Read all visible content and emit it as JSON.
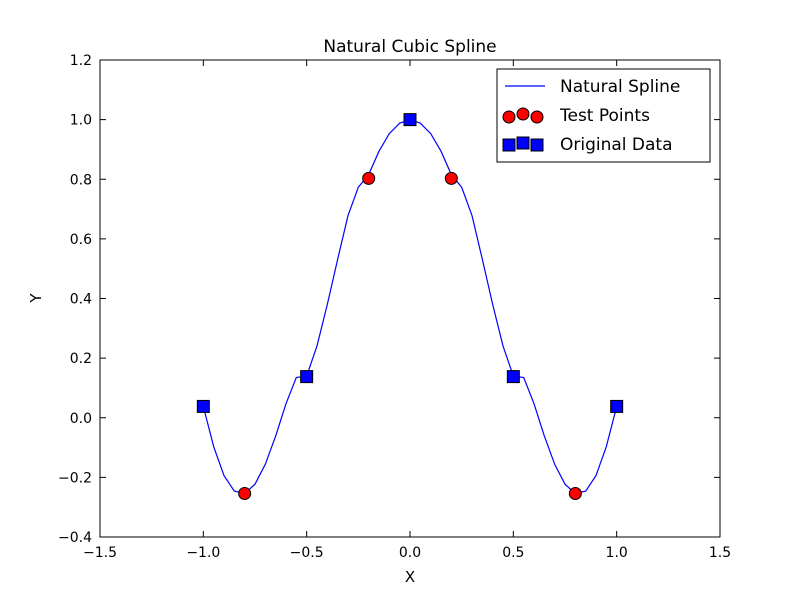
{
  "chart_data": {
    "type": "line",
    "title": "Natural Cubic Spline",
    "xlabel": "X",
    "ylabel": "Y",
    "xlim": [
      -1.5,
      1.5
    ],
    "ylim": [
      -0.4,
      1.2
    ],
    "x_ticks": [
      -1.5,
      -1.0,
      -0.5,
      0.0,
      0.5,
      1.0,
      1.5
    ],
    "x_tick_labels": [
      "−1.5",
      "−1.0",
      "−0.5",
      "0.0",
      "0.5",
      "1.0",
      "1.5"
    ],
    "y_ticks": [
      -0.4,
      -0.2,
      0.0,
      0.2,
      0.4,
      0.6,
      0.8,
      1.0,
      1.2
    ],
    "y_tick_labels": [
      "−0.4",
      "−0.2",
      "0.0",
      "0.2",
      "0.4",
      "0.6",
      "0.8",
      "1.0",
      "1.2"
    ],
    "grid": false,
    "legend_position": "top-right",
    "series": [
      {
        "name": "Natural Spline",
        "kind": "line",
        "color": "#0000ff",
        "x": [
          -1.0,
          -0.95,
          -0.9,
          -0.85,
          -0.8,
          -0.75,
          -0.7,
          -0.65,
          -0.6,
          -0.55,
          -0.5,
          -0.45,
          -0.4,
          -0.35,
          -0.3,
          -0.25,
          -0.2,
          -0.15,
          -0.1,
          -0.05,
          0.0,
          0.05,
          0.1,
          0.15,
          0.2,
          0.25,
          0.3,
          0.35,
          0.4,
          0.45,
          0.5,
          0.55,
          0.6,
          0.65,
          0.7,
          0.75,
          0.8,
          0.85,
          0.9,
          0.95,
          1.0
        ],
        "y": [
          0.038,
          -0.097,
          -0.194,
          -0.246,
          -0.254,
          -0.223,
          -0.156,
          -0.061,
          0.047,
          0.135,
          0.14,
          0.241,
          0.38,
          0.532,
          0.678,
          0.773,
          0.816,
          0.894,
          0.953,
          0.988,
          1.0,
          0.988,
          0.953,
          0.894,
          0.816,
          0.773,
          0.678,
          0.532,
          0.38,
          0.241,
          0.14,
          0.135,
          0.047,
          -0.061,
          -0.156,
          -0.223,
          -0.254,
          -0.246,
          -0.194,
          -0.097,
          0.038
        ]
      },
      {
        "name": "Test Points",
        "kind": "scatter",
        "marker": "circle",
        "color": "#ff0000",
        "x": [
          -0.8,
          -0.2,
          0.2,
          0.8
        ],
        "y": [
          -0.254,
          0.803,
          0.803,
          -0.254
        ]
      },
      {
        "name": "Original Data",
        "kind": "scatter",
        "marker": "square",
        "color": "#0000ff",
        "x": [
          -1.0,
          -0.5,
          0.0,
          0.5,
          1.0
        ],
        "y": [
          0.038,
          0.138,
          1.0,
          0.138,
          0.038
        ]
      }
    ]
  }
}
